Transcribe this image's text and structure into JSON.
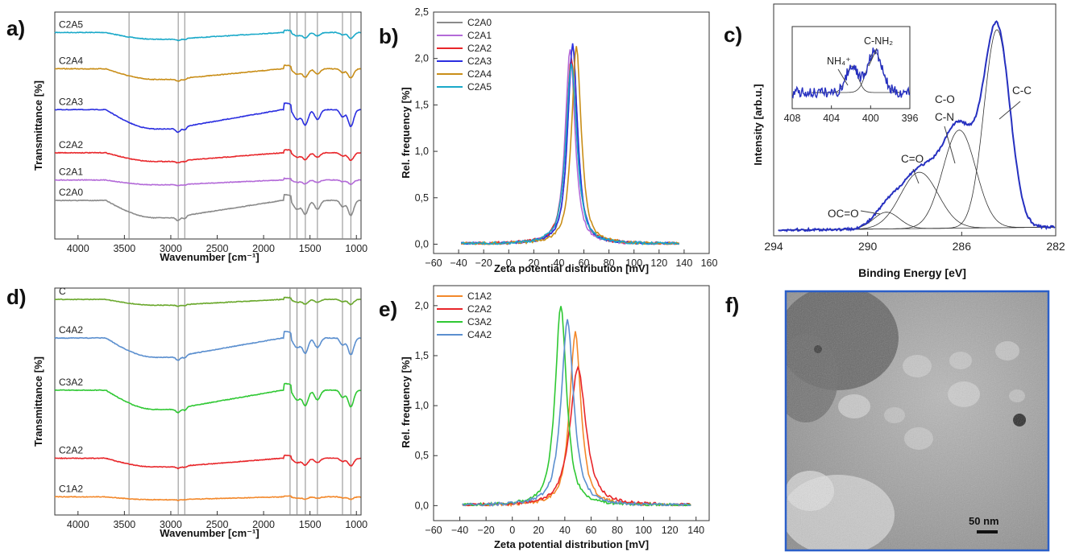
{
  "panel_letters": [
    "a)",
    "b)",
    "c)",
    "d)",
    "e)",
    "f)"
  ],
  "colors": {
    "gray": "#8a8a8a",
    "purple": "#b36ad8",
    "red": "#e8262a",
    "blue": "#2a2ee0",
    "gold": "#c98e18",
    "cyan": "#1aa9c9",
    "orange": "#f3882a",
    "green": "#2fc833",
    "lightblue": "#5b8fcf",
    "olive": "#6aa82c",
    "navy": "#2630c0",
    "tem_border": "#2b5fc8"
  },
  "chart_data": [
    {
      "panel": "a",
      "type": "line",
      "xlabel": "Wavenumber [cm⁻¹]",
      "ylabel": "Transmittance [%]",
      "xlim": [
        4250,
        950
      ],
      "x_reversed": true,
      "xticks": [
        "4000",
        "3500",
        "3000",
        "2500",
        "2000",
        "1500",
        "1000"
      ],
      "xtick_values": [
        4000,
        3500,
        3000,
        2500,
        2000,
        1500,
        1000
      ],
      "reference_lines": [
        3450,
        2920,
        2850,
        1715,
        1640,
        1550,
        1420,
        1150,
        1060
      ],
      "series": [
        {
          "name": "C2A5",
          "color_key": "cyan",
          "baseline": 0.91,
          "dip_scale": 0.35
        },
        {
          "name": "C2A4",
          "color_key": "gold",
          "baseline": 0.75,
          "dip_scale": 0.55
        },
        {
          "name": "C2A3",
          "color_key": "blue",
          "baseline": 0.57,
          "dip_scale": 1.0
        },
        {
          "name": "C2A2",
          "color_key": "red",
          "baseline": 0.38,
          "dip_scale": 0.45
        },
        {
          "name": "C2A1",
          "color_key": "purple",
          "baseline": 0.26,
          "dip_scale": 0.25
        },
        {
          "name": "C2A0",
          "color_key": "gray",
          "baseline": 0.17,
          "dip_scale": 0.9
        }
      ]
    },
    {
      "panel": "b",
      "type": "line",
      "xlabel": "Zeta potential distribution [mV]",
      "ylabel": "Rel. frequency [%]",
      "xlim": [
        -60,
        160
      ],
      "ylim": [
        -0.1,
        2.5
      ],
      "xticks": [
        "−60",
        "−40",
        "−20",
        "0",
        "20",
        "40",
        "60",
        "80",
        "100",
        "120",
        "140",
        "160"
      ],
      "xtick_values": [
        -60,
        -40,
        -20,
        0,
        20,
        40,
        60,
        80,
        100,
        120,
        140,
        160
      ],
      "yticks": [
        "0,0",
        "0,5",
        "1,0",
        "1,5",
        "2,0",
        "2,5"
      ],
      "ytick_values": [
        0,
        0.5,
        1.0,
        1.5,
        2.0,
        2.5
      ],
      "legend_position": "top-left",
      "series": [
        {
          "name": "C2A0",
          "color_key": "gray",
          "peak_x": 51,
          "peak_y": 2.15,
          "width": 4.5
        },
        {
          "name": "C2A1",
          "color_key": "purple",
          "peak_x": 49,
          "peak_y": 2.1,
          "width": 4.5
        },
        {
          "name": "C2A2",
          "color_key": "red",
          "peak_x": 50,
          "peak_y": 2.0,
          "width": 5
        },
        {
          "name": "C2A3",
          "color_key": "blue",
          "peak_x": 51,
          "peak_y": 2.15,
          "width": 4.5
        },
        {
          "name": "C2A4",
          "color_key": "gold",
          "peak_x": 54,
          "peak_y": 2.12,
          "width": 4.5
        },
        {
          "name": "C2A5",
          "color_key": "cyan",
          "peak_x": 50,
          "peak_y": 1.95,
          "width": 5
        }
      ]
    },
    {
      "panel": "c",
      "type": "line",
      "xlabel": "Binding Energy [eV]",
      "ylabel": "Intensity [arb.u.]",
      "xlim": [
        294,
        282
      ],
      "x_reversed": true,
      "xticks": [
        "294",
        "290",
        "286",
        "282"
      ],
      "xtick_values": [
        294,
        290,
        286,
        282
      ],
      "components": [
        {
          "label": "OC=O",
          "center": 289.2,
          "height": 0.08,
          "width": 0.55
        },
        {
          "label": "C=O",
          "center": 287.8,
          "height": 0.27,
          "width": 0.8
        },
        {
          "label": "C-O C-N",
          "center": 286.1,
          "height": 0.47,
          "width": 0.7
        },
        {
          "label": "C-C",
          "center": 284.5,
          "height": 0.95,
          "width": 0.55
        }
      ],
      "annotations": [
        "C-C",
        "C-O",
        "C-N",
        "C=O",
        "OC=O"
      ],
      "inset": {
        "xlim": [
          408,
          396
        ],
        "x_reversed": true,
        "xticks": [
          "408",
          "404",
          "400",
          "396"
        ],
        "xtick_values": [
          408,
          404,
          400,
          396
        ],
        "annotations": [
          "NH₄⁺",
          "C-NH₂"
        ],
        "peaks": [
          {
            "label": "NH₄⁺",
            "center": 401.9,
            "height": 0.55,
            "width": 0.6
          },
          {
            "label": "C-NH₂",
            "center": 399.6,
            "height": 0.85,
            "width": 0.75
          }
        ]
      }
    },
    {
      "panel": "d",
      "type": "line",
      "xlabel": "Wavenumber [cm⁻¹]",
      "ylabel": "Transmittance [%]",
      "xlim": [
        4250,
        950
      ],
      "x_reversed": true,
      "xticks": [
        "4000",
        "3500",
        "3000",
        "2500",
        "2000",
        "1500",
        "1000"
      ],
      "xtick_values": [
        4000,
        3500,
        3000,
        2500,
        2000,
        1500,
        1000
      ],
      "reference_lines": [
        3450,
        2920,
        2850,
        1715,
        1640,
        1550,
        1420,
        1150,
        1060
      ],
      "series": [
        {
          "name": "C",
          "color_key": "olive",
          "baseline": 0.95,
          "dip_scale": 0.3
        },
        {
          "name": "C4A2",
          "color_key": "lightblue",
          "baseline": 0.78,
          "dip_scale": 1.0
        },
        {
          "name": "C3A2",
          "color_key": "green",
          "baseline": 0.55,
          "dip_scale": 1.0
        },
        {
          "name": "C2A2",
          "color_key": "red",
          "baseline": 0.25,
          "dip_scale": 0.45
        },
        {
          "name": "C1A2",
          "color_key": "orange",
          "baseline": 0.08,
          "dip_scale": 0.15
        }
      ]
    },
    {
      "panel": "e",
      "type": "line",
      "xlabel": "Zeta potential distribution [mV]",
      "ylabel": "Rel. frequency [%]",
      "xlim": [
        -60,
        150
      ],
      "ylim": [
        -0.15,
        2.2
      ],
      "xticks": [
        "−60",
        "−40",
        "−20",
        "0",
        "20",
        "40",
        "60",
        "80",
        "100",
        "120",
        "140"
      ],
      "xtick_values": [
        -60,
        -40,
        -20,
        0,
        20,
        40,
        60,
        80,
        100,
        120,
        140
      ],
      "yticks": [
        "0,0",
        "0,5",
        "1,0",
        "1,5",
        "2,0"
      ],
      "ytick_values": [
        0,
        0.5,
        1.0,
        1.5,
        2.0
      ],
      "legend_position": "top-left",
      "series": [
        {
          "name": "C1A2",
          "color_key": "orange",
          "peak_x": 48,
          "peak_y": 1.73,
          "width": 5
        },
        {
          "name": "C2A2",
          "color_key": "red",
          "peak_x": 50,
          "peak_y": 1.38,
          "width": 7
        },
        {
          "name": "C3A2",
          "color_key": "green",
          "peak_x": 37,
          "peak_y": 2.0,
          "width": 5
        },
        {
          "name": "C4A2",
          "color_key": "lightblue",
          "peak_x": 42,
          "peak_y": 1.85,
          "width": 5.5
        }
      ]
    }
  ],
  "tem": {
    "scale_bar_label": "50 nm"
  }
}
